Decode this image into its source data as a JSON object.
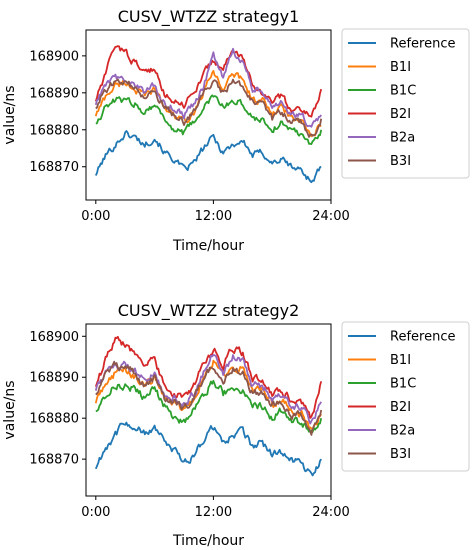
{
  "chart_data": [
    {
      "type": "line",
      "title": "CUSV_WTZZ strategy1",
      "xlabel": "Time/hour",
      "ylabel": "value/ns",
      "xticks": [
        "0:00",
        "12:00",
        "24:00"
      ],
      "yticks": [
        "168870",
        "168880",
        "168890",
        "168900"
      ],
      "xlim": [
        -1,
        24
      ],
      "ylim": [
        168861,
        168907
      ],
      "legend_position": "outside right",
      "x": [
        0,
        1,
        2,
        3,
        4,
        5,
        6,
        7,
        8,
        9,
        10,
        11,
        12,
        13,
        14,
        15,
        16,
        17,
        18,
        19,
        20,
        21,
        22,
        23
      ],
      "series": [
        {
          "name": "Reference",
          "color": "#1f77b4",
          "values": [
            168868,
            168873,
            168876,
            168879,
            168878,
            168876,
            168878,
            168874,
            168872,
            168869,
            168871,
            168875,
            168878,
            168874,
            168876,
            168877,
            168873,
            168874,
            168871,
            168872,
            168870,
            168869,
            168866,
            168870
          ]
        },
        {
          "name": "B1I",
          "color": "#ff7f0e",
          "values": [
            168884,
            168889,
            168892,
            168893,
            168891,
            168889,
            168891,
            168886,
            168884,
            168882,
            168885,
            168890,
            168896,
            168891,
            168895,
            168894,
            168888,
            168888,
            168884,
            168886,
            168883,
            168882,
            168878,
            168881
          ]
        },
        {
          "name": "B1C",
          "color": "#2ca02c",
          "values": [
            168882,
            168886,
            168888,
            168888,
            168887,
            168885,
            168887,
            168883,
            168880,
            168879,
            168882,
            168886,
            168889,
            168886,
            168888,
            168887,
            168883,
            168883,
            168880,
            168882,
            168880,
            168879,
            168876,
            168880
          ]
        },
        {
          "name": "B2I",
          "color": "#d62728",
          "values": [
            168888,
            168895,
            168903,
            168901,
            168898,
            168896,
            168896,
            168890,
            168888,
            168887,
            168890,
            168895,
            168899,
            168896,
            168902,
            168899,
            168892,
            168890,
            168888,
            168889,
            168885,
            168886,
            168883,
            168891
          ]
        },
        {
          "name": "B2a",
          "color": "#9467bd",
          "values": [
            168887,
            168892,
            168894,
            168894,
            168892,
            168890,
            168892,
            168887,
            168886,
            168884,
            168887,
            168892,
            168900,
            168894,
            168901,
            168899,
            168891,
            168891,
            168887,
            168887,
            168884,
            168884,
            168880,
            168884
          ]
        },
        {
          "name": "B3I",
          "color": "#8c564b",
          "values": [
            168886,
            168891,
            168893,
            168893,
            168891,
            168888,
            168890,
            168886,
            168884,
            168882,
            168885,
            168890,
            168893,
            168890,
            168893,
            168892,
            168887,
            168887,
            168883,
            168885,
            168882,
            168882,
            168878,
            168883
          ]
        }
      ]
    },
    {
      "type": "line",
      "title": "CUSV_WTZZ strategy2",
      "xlabel": "Time/hour",
      "ylabel": "value/ns",
      "xticks": [
        "0:00",
        "12:00",
        "24:00"
      ],
      "yticks": [
        "168870",
        "168880",
        "168890",
        "168900"
      ],
      "xlim": [
        -1,
        24
      ],
      "ylim": [
        168861,
        168903
      ],
      "legend_position": "outside right",
      "x": [
        0,
        1,
        2,
        3,
        4,
        5,
        6,
        7,
        8,
        9,
        10,
        11,
        12,
        13,
        14,
        15,
        16,
        17,
        18,
        19,
        20,
        21,
        22,
        23
      ],
      "series": [
        {
          "name": "Reference",
          "color": "#1f77b4",
          "values": [
            168868,
            168873,
            168876,
            168879,
            168878,
            168876,
            168878,
            168874,
            168872,
            168869,
            168871,
            168875,
            168878,
            168874,
            168876,
            168877,
            168873,
            168874,
            168871,
            168872,
            168870,
            168869,
            168866,
            168870
          ]
        },
        {
          "name": "B1I",
          "color": "#ff7f0e",
          "values": [
            168884,
            168889,
            168891,
            168892,
            168890,
            168888,
            168890,
            168885,
            168884,
            168882,
            168885,
            168890,
            168894,
            168890,
            168893,
            168892,
            168887,
            168887,
            168883,
            168885,
            168882,
            168881,
            168877,
            168881
          ]
        },
        {
          "name": "B1C",
          "color": "#2ca02c",
          "values": [
            168882,
            168886,
            168888,
            168888,
            168887,
            168885,
            168887,
            168883,
            168880,
            168879,
            168882,
            168886,
            168889,
            168886,
            168888,
            168887,
            168883,
            168883,
            168880,
            168882,
            168880,
            168879,
            168876,
            168880
          ]
        },
        {
          "name": "B2I",
          "color": "#d62728",
          "values": [
            168888,
            168894,
            168899,
            168898,
            168896,
            168893,
            168894,
            168888,
            168886,
            168885,
            168888,
            168893,
            168897,
            168893,
            168897,
            168896,
            168890,
            168889,
            168886,
            168887,
            168884,
            168884,
            168880,
            168889
          ]
        },
        {
          "name": "B2a",
          "color": "#9467bd",
          "values": [
            168887,
            168891,
            168893,
            168893,
            168892,
            168889,
            168891,
            168886,
            168885,
            168883,
            168886,
            168891,
            168896,
            168891,
            168895,
            168894,
            168888,
            168888,
            168885,
            168886,
            168883,
            168883,
            168879,
            168884
          ]
        },
        {
          "name": "B3I",
          "color": "#8c564b",
          "values": [
            168886,
            168891,
            168893,
            168892,
            168891,
            168888,
            168890,
            168885,
            168884,
            168882,
            168885,
            168890,
            168893,
            168889,
            168892,
            168891,
            168886,
            168886,
            168883,
            168884,
            168881,
            168881,
            168877,
            168882
          ]
        }
      ]
    }
  ]
}
